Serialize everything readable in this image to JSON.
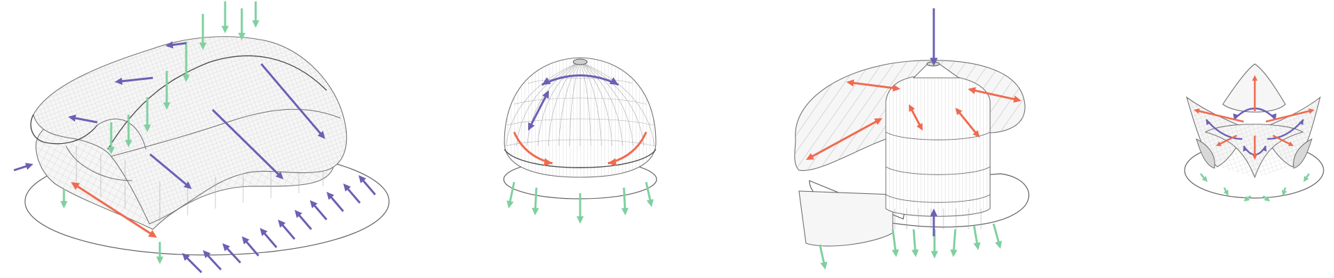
{
  "figure": {
    "panels": [
      {
        "id": "shell",
        "description_name": "undulating-shell-pavilion"
      },
      {
        "id": "dome",
        "description_name": "lattice-dome"
      },
      {
        "id": "spiral",
        "description_name": "spiral-roof-tower"
      },
      {
        "id": "flower",
        "description_name": "four-petal-shell"
      }
    ]
  },
  "colors": {
    "gravity_load": "#7fd0a0",
    "lateral_force": "#6a60b4",
    "thrust_force": "#ef6a50",
    "linework": "#6e6e6e",
    "background": "#ffffff"
  },
  "legend_arrow_types": [
    "green-arrow",
    "purple-arrow",
    "red-arrow"
  ]
}
